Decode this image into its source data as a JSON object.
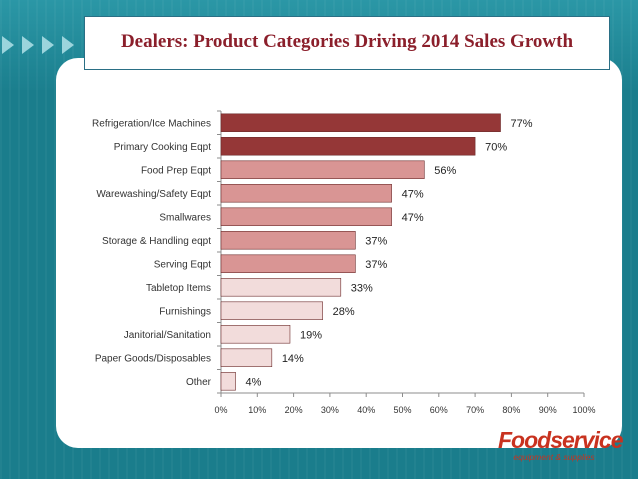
{
  "slide": {
    "title": "Dealers: Product Categories Driving 2014 Sales Growth",
    "logo_text": "Foodservice",
    "logo_subtext": "equipment & supplies"
  },
  "colors": {
    "tier_high": "#953737",
    "tier_mid": "#d99594",
    "tier_low": "#f2dcdb",
    "bar_stroke": "#6b2a2a",
    "title": "#8b1f2b",
    "logo": "#c8321f"
  },
  "chart_data": {
    "type": "bar",
    "orientation": "horizontal",
    "categories": [
      "Refrigeration/Ice Machines",
      "Primary Cooking Eqpt",
      "Food Prep Eqpt",
      "Warewashing/Safety Eqpt",
      "Smallwares",
      "Storage & Handling eqpt",
      "Serving Eqpt",
      "Tabletop Items",
      "Furnishings",
      "Janitorial/Sanitation",
      "Paper Goods/Disposables",
      "Other"
    ],
    "values": [
      77,
      70,
      56,
      47,
      47,
      37,
      37,
      33,
      28,
      19,
      14,
      4
    ],
    "value_labels": [
      "77%",
      "70%",
      "56%",
      "47%",
      "47%",
      "37%",
      "37%",
      "33%",
      "28%",
      "19%",
      "14%",
      "4%"
    ],
    "tiers": [
      "high",
      "high",
      "mid",
      "mid",
      "mid",
      "mid",
      "mid",
      "low",
      "low",
      "low",
      "low",
      "low"
    ],
    "xlim": [
      0,
      100
    ],
    "xticks": [
      0,
      10,
      20,
      30,
      40,
      50,
      60,
      70,
      80,
      90,
      100
    ],
    "xtick_labels": [
      "0%",
      "10%",
      "20%",
      "30%",
      "40%",
      "50%",
      "60%",
      "70%",
      "80%",
      "90%",
      "100%"
    ],
    "grid": false,
    "legend": "none"
  }
}
